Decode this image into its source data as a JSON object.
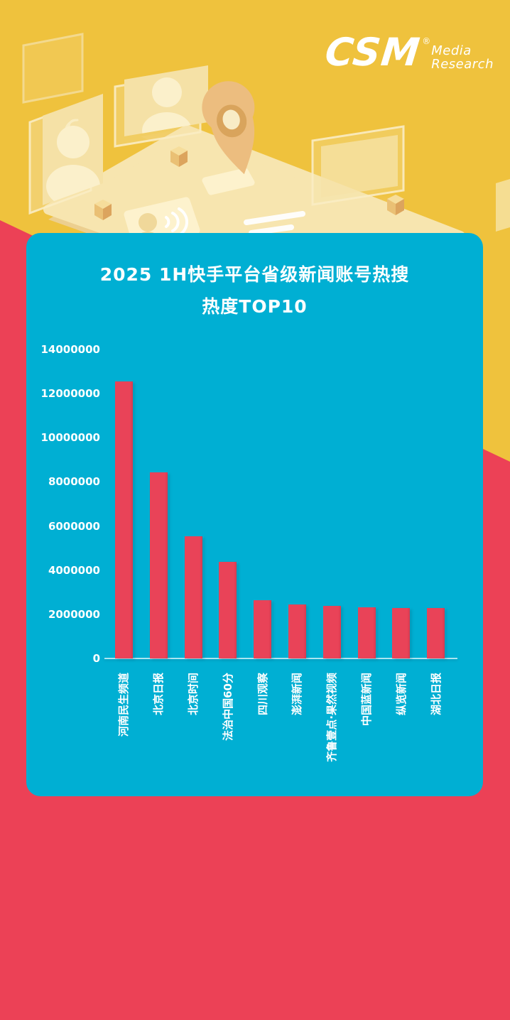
{
  "page": {
    "kind": "infographic-poster"
  },
  "logo": {
    "brand": "CSM",
    "registered": "®",
    "sub_line1": "Media",
    "sub_line2": "Research"
  },
  "card": {
    "title_line1": "2025 1H快手平台省级新闻账号热搜",
    "title_line2": "热度TOP10"
  },
  "colors": {
    "background_top": "#EFC23D",
    "background_bottom": "#EC4156",
    "card_background": "#00AFD3",
    "bar_fill": "#E94358",
    "text": "#FFFFFF",
    "illustration_fill": "#F6E3AC",
    "pin_fill": "#ECBD7F"
  },
  "icons": {
    "illustration": "isometric-tablet-with-photo-frames-and-location-pin",
    "logo_mark": "csm-media-research-logo"
  },
  "chart_data": {
    "type": "bar",
    "title": "2025 1H快手平台省级新闻账号热搜 热度TOP10",
    "categories": [
      "河南民生频道",
      "北京日报",
      "北京时间",
      "法治中国60分",
      "四川观察",
      "澎湃新闻",
      "齐鲁壹点·果然视频",
      "中国蓝新闻",
      "纵览新闻",
      "湖北日报"
    ],
    "values": [
      12560000,
      8430000,
      5540000,
      4390000,
      2630000,
      2450000,
      2390000,
      2330000,
      2300000,
      2270000
    ],
    "xlabel": "",
    "ylabel": "",
    "ylim": [
      0,
      14000000
    ],
    "yticks": [
      0,
      2000000,
      4000000,
      6000000,
      8000000,
      10000000,
      12000000,
      14000000
    ],
    "grid": false,
    "legend": null,
    "bar_color": "#E94358",
    "x_tick_rotation": -90
  }
}
